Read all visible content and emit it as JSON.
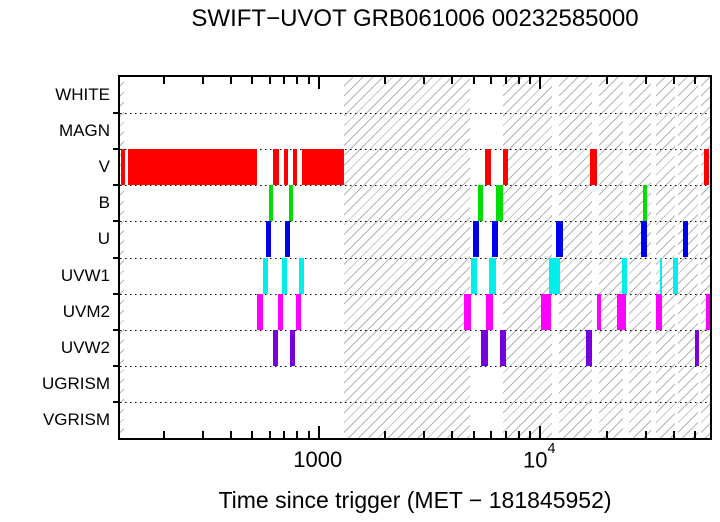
{
  "title": "SWIFT−UVOT GRB061006 00232585000",
  "chart_data": {
    "type": "bar",
    "subtype": "horizontal-timeline-coverage",
    "title": "SWIFT−UVOT GRB061006 00232585000",
    "xlabel": "Time since trigger (MET − 181845952)",
    "ylabel": "",
    "x_scale": "log",
    "x_range": [
      128,
      59000
    ],
    "grid": "dotted row dividers",
    "legend": "none",
    "categories": [
      "WHITE",
      "MAGN",
      "V",
      "B",
      "U",
      "UVW1",
      "UVM2",
      "UVW2",
      "UGRISM",
      "VGRISM"
    ],
    "x_major_ticks": [
      {
        "value": 1000,
        "label": "1000",
        "sup": ""
      },
      {
        "value": 10000,
        "label": "10",
        "sup": "4"
      }
    ],
    "x_minor_ticks": [
      200,
      300,
      400,
      500,
      600,
      700,
      800,
      900,
      2000,
      3000,
      4000,
      5000,
      6000,
      7000,
      8000,
      9000,
      20000,
      30000,
      40000,
      50000
    ],
    "series": [
      {
        "filter": "V",
        "color": "#ff0000",
        "intervals": [
          [
            129,
            135
          ],
          [
            139,
            533
          ],
          [
            628,
            668
          ],
          [
            704,
            734
          ],
          [
            772,
            805
          ],
          [
            848,
            1310
          ],
          [
            5670,
            6030
          ],
          [
            6830,
            7190
          ],
          [
            16900,
            18200
          ],
          [
            55500,
            58500
          ]
        ]
      },
      {
        "filter": "B",
        "color": "#00dd00",
        "intervals": [
          [
            603,
            628
          ],
          [
            741,
            772
          ],
          [
            5270,
            5550
          ],
          [
            6410,
            6830
          ],
          [
            29300,
            30500
          ]
        ]
      },
      {
        "filter": "U",
        "color": "#0000ee",
        "intervals": [
          [
            585,
            616
          ],
          [
            711,
            749
          ],
          [
            5010,
            5330
          ],
          [
            6090,
            6480
          ],
          [
            11900,
            12800
          ],
          [
            28700,
            30500
          ],
          [
            44700,
            47000
          ]
        ]
      },
      {
        "filter": "UVW1",
        "color": "#00eeee",
        "intervals": [
          [
            567,
            597
          ],
          [
            690,
            726
          ],
          [
            822,
            865
          ],
          [
            4900,
            5220
          ],
          [
            5910,
            6350
          ],
          [
            11100,
            12400
          ],
          [
            23600,
            24800
          ],
          [
            35200,
            36000
          ],
          [
            40300,
            42400
          ]
        ]
      },
      {
        "filter": "UVM2",
        "color": "#ff00ff",
        "intervals": [
          [
            533,
            567
          ],
          [
            662,
            697
          ],
          [
            797,
            839
          ],
          [
            4560,
            4900
          ],
          [
            5730,
            6160
          ],
          [
            10200,
            11300
          ],
          [
            18200,
            19000
          ],
          [
            22400,
            24600
          ],
          [
            33800,
            36000
          ],
          [
            56700,
            59000
          ]
        ]
      },
      {
        "filter": "UVW2",
        "color": "#7700dd",
        "intervals": [
          [
            628,
            662
          ],
          [
            749,
            789
          ],
          [
            5440,
            5850
          ],
          [
            6680,
            7110
          ],
          [
            16300,
            17300
          ],
          [
            50600,
            52700
          ]
        ]
      }
    ],
    "hatched_gaps": [
      [
        128,
        134
      ],
      [
        1310,
        4850
      ],
      [
        6830,
        11400
      ],
      [
        12300,
        17300
      ],
      [
        18600,
        24000
      ],
      [
        25300,
        32100
      ],
      [
        33500,
        41200
      ],
      [
        42400,
        52200
      ],
      [
        53800,
        59000
      ]
    ]
  }
}
